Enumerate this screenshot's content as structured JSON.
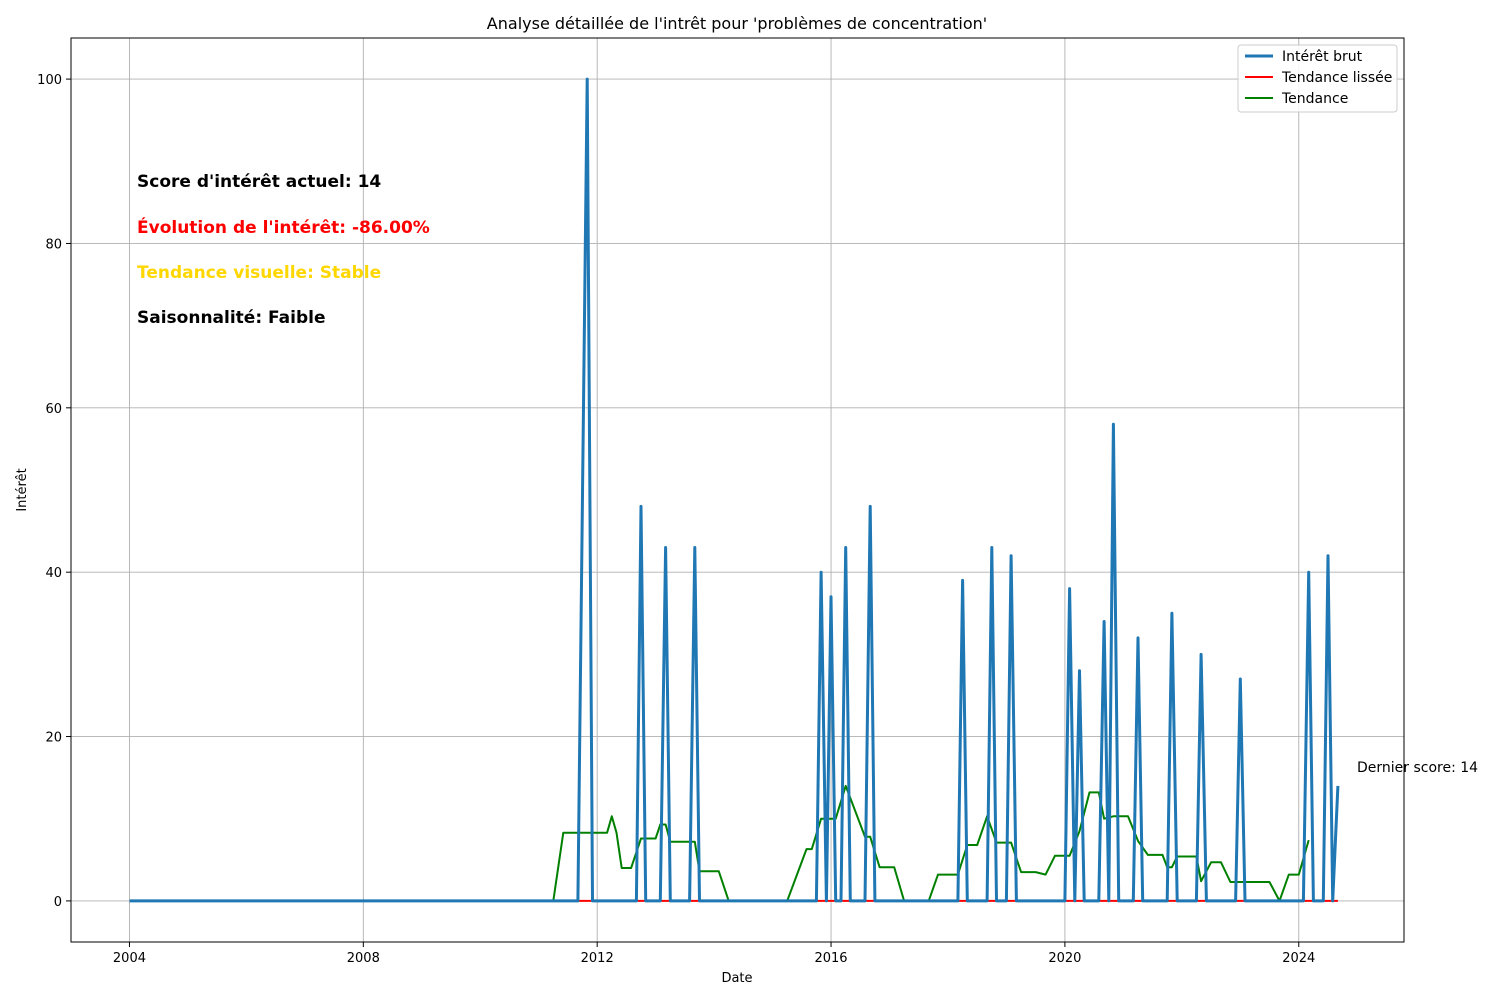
{
  "chart_data": {
    "type": "line",
    "title": "Analyse détaillée de l'intrêt pour 'problèmes de concentration'",
    "xlabel": "Date",
    "ylabel": "Intérêt",
    "xlim": [
      2003.0,
      2025.8
    ],
    "ylim": [
      -5,
      105
    ],
    "x_ticks": [
      2004,
      2008,
      2012,
      2016,
      2020,
      2024
    ],
    "y_ticks": [
      0,
      20,
      40,
      60,
      80,
      100
    ],
    "grid": true,
    "legend_position": "top-right",
    "legend": [
      "Intérêt brut",
      "Tendance lissée",
      "Tendance"
    ],
    "colors": {
      "raw": "#1f77b4",
      "smoothed": "#ff0000",
      "trend": "#008000"
    },
    "series": [
      {
        "name": "Intérêt brut",
        "color": "#1f77b4",
        "x": [
          2004.0,
          2011.67,
          2011.83,
          2011.92,
          2012.67,
          2012.75,
          2012.83,
          2013.08,
          2013.17,
          2013.25,
          2013.58,
          2013.67,
          2013.75,
          2015.75,
          2015.83,
          2015.92,
          2016.0,
          2016.08,
          2016.17,
          2016.25,
          2016.33,
          2016.58,
          2016.67,
          2016.75,
          2018.17,
          2018.25,
          2018.33,
          2018.67,
          2018.75,
          2018.83,
          2019.0,
          2019.08,
          2019.17,
          2020.0,
          2020.08,
          2020.17,
          2020.25,
          2020.33,
          2020.58,
          2020.67,
          2020.75,
          2020.83,
          2020.92,
          2021.17,
          2021.25,
          2021.33,
          2021.75,
          2021.83,
          2021.92,
          2022.25,
          2022.33,
          2022.42,
          2022.92,
          2023.0,
          2023.08,
          2024.08,
          2024.17,
          2024.25,
          2024.42,
          2024.5,
          2024.58,
          2024.67
        ],
        "values": [
          0,
          0,
          100,
          0,
          0,
          48,
          0,
          0,
          43,
          0,
          0,
          43,
          0,
          0,
          40,
          0,
          37,
          0,
          0,
          43,
          0,
          0,
          48,
          0,
          0,
          39,
          0,
          0,
          43,
          0,
          0,
          42,
          0,
          0,
          38,
          0,
          28,
          0,
          0,
          34,
          0,
          58,
          0,
          0,
          32,
          0,
          0,
          35,
          0,
          0,
          30,
          0,
          0,
          27,
          0,
          0,
          40,
          0,
          0,
          42,
          0,
          14
        ]
      },
      {
        "name": "Tendance lissée",
        "color": "#ff0000",
        "x": [
          2004.0,
          2024.67
        ],
        "values": [
          0,
          0
        ]
      },
      {
        "name": "Tendance",
        "color": "#008000",
        "x": [
          2004.5,
          2011.25,
          2011.42,
          2012.17,
          2012.25,
          2012.33,
          2012.42,
          2012.58,
          2012.75,
          2013.0,
          2013.08,
          2013.17,
          2013.25,
          2013.67,
          2013.75,
          2014.08,
          2014.25,
          2015.25,
          2015.58,
          2015.67,
          2015.83,
          2016.08,
          2016.25,
          2016.58,
          2016.67,
          2016.83,
          2017.08,
          2017.25,
          2017.67,
          2017.83,
          2018.17,
          2018.33,
          2018.5,
          2018.67,
          2018.83,
          2019.08,
          2019.25,
          2019.5,
          2019.67,
          2019.83,
          2020.08,
          2020.25,
          2020.42,
          2020.58,
          2020.67,
          2020.83,
          2021.08,
          2021.25,
          2021.42,
          2021.67,
          2021.75,
          2021.83,
          2021.92,
          2022.25,
          2022.33,
          2022.5,
          2022.67,
          2022.83,
          2023.0,
          2023.5,
          2023.67,
          2023.83,
          2024.0,
          2024.17
        ],
        "values": [
          0,
          0,
          8.3,
          8.3,
          10.3,
          8.3,
          4.0,
          4.0,
          7.6,
          7.6,
          9.3,
          9.3,
          7.2,
          7.2,
          3.6,
          3.6,
          0,
          0,
          6.3,
          6.3,
          10.0,
          10.0,
          14.0,
          7.8,
          7.8,
          4.1,
          4.1,
          0,
          0,
          3.2,
          3.2,
          6.8,
          6.8,
          10.3,
          7.1,
          7.1,
          3.5,
          3.5,
          3.2,
          5.5,
          5.5,
          8.5,
          13.2,
          13.2,
          10.0,
          10.3,
          10.3,
          7.3,
          5.6,
          5.6,
          4.1,
          4.1,
          5.4,
          5.4,
          2.4,
          4.7,
          4.7,
          2.3,
          2.3,
          2.3,
          0,
          3.2,
          3.2,
          7.4
        ]
      }
    ],
    "annotations": {
      "score": "Score d'intérêt actuel: 14",
      "evolution": "Évolution de l'intérêt: -86.00%",
      "tendance": "Tendance visuelle: Stable",
      "saisonnalite": "Saisonnalité: Faible",
      "dernier": "Dernier score: 14",
      "colors": {
        "score": "#000000",
        "evolution": "#ff0000",
        "tendance": "#ffd700",
        "saisonnalite": "#000000"
      }
    }
  }
}
